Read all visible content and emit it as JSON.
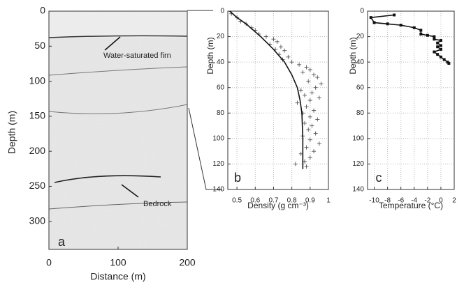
{
  "chart_data": [
    {
      "type": "image",
      "xlabel": "Distance (m)",
      "ylabel": "Depth (m)",
      "label": "a",
      "xlim": [
        0,
        200
      ],
      "xticks": [
        0,
        100,
        200
      ],
      "ylim": [
        0,
        340
      ],
      "yticks": [
        0,
        50,
        100,
        150,
        200,
        250,
        300
      ],
      "y_inverted": true,
      "grid": false,
      "annotations": [
        "Water-saturated firn",
        "Bedrock"
      ]
    },
    {
      "type": "scatter",
      "xlabel": "Density (g cm⁻³)",
      "ylabel": "Depth (m)",
      "label": "b",
      "xlim": [
        0.45,
        1
      ],
      "xticks": [
        0.5,
        0.6,
        0.7,
        0.8,
        0.9,
        1
      ],
      "ylim": [
        0,
        140
      ],
      "yticks": [
        0,
        20,
        40,
        60,
        80,
        100,
        120,
        140
      ],
      "y_inverted": true,
      "grid": true,
      "series": [
        {
          "color": "#555",
          "marker": "+",
          "x": [
            0.47,
            0.5,
            0.52,
            0.55,
            0.58,
            0.6,
            0.62,
            0.66,
            0.7,
            0.72,
            0.68,
            0.74,
            0.71,
            0.76,
            0.73,
            0.78,
            0.75,
            0.8,
            0.84,
            0.88,
            0.9,
            0.86,
            0.92,
            0.94,
            0.89,
            0.96,
            0.93,
            0.85,
            0.91,
            0.87,
            0.95,
            0.9,
            0.83,
            0.88,
            0.92,
            0.86,
            0.9,
            0.94,
            0.87,
            0.91,
            0.89,
            0.93,
            0.86,
            0.9,
            0.95,
            0.88,
            0.92,
            0.85,
            0.9,
            0.87,
            0.82,
            0.88
          ],
          "values": [
            2,
            5,
            8,
            10,
            13,
            15,
            18,
            20,
            22,
            24,
            26,
            28,
            30,
            31,
            34,
            36,
            38,
            40,
            42,
            44,
            46,
            48,
            50,
            52,
            55,
            57,
            60,
            62,
            64,
            66,
            68,
            70,
            72,
            75,
            78,
            80,
            83,
            85,
            88,
            90,
            93,
            96,
            98,
            101,
            104,
            107,
            110,
            112,
            115,
            118,
            120,
            122
          ]
        },
        {
          "color": "#111",
          "marker": "line",
          "x": [
            0.46,
            0.5,
            0.55,
            0.63,
            0.7,
            0.76,
            0.8,
            0.83,
            0.845,
            0.855,
            0.86,
            0.86
          ],
          "values": [
            0,
            5,
            10,
            20,
            30,
            40,
            50,
            60,
            70,
            80,
            100,
            124
          ]
        }
      ]
    },
    {
      "type": "line",
      "xlabel": "Temperature (°C)",
      "ylabel": "Depth (m)",
      "label": "c",
      "xlim": [
        -11,
        2
      ],
      "xticks": [
        -10,
        -8,
        -6,
        -4,
        -2,
        0,
        2
      ],
      "ylim": [
        0,
        140
      ],
      "yticks": [
        0,
        20,
        40,
        60,
        80,
        100,
        120,
        140
      ],
      "y_inverted": true,
      "grid": true,
      "series": [
        {
          "color": "#111",
          "marker": "square",
          "x": [
            -7,
            -10.5,
            -10,
            -8,
            -6,
            -4,
            -3,
            -3,
            -2,
            -1,
            -1,
            0,
            -0.5,
            0,
            -0.5,
            0,
            -1,
            -0.5,
            0,
            0.5,
            1,
            1.2
          ],
          "values": [
            3,
            5,
            9,
            10,
            11,
            13,
            15,
            18,
            19,
            20,
            22,
            23,
            25,
            27,
            28,
            30,
            32,
            34,
            36,
            38,
            40,
            41
          ]
        }
      ]
    }
  ]
}
